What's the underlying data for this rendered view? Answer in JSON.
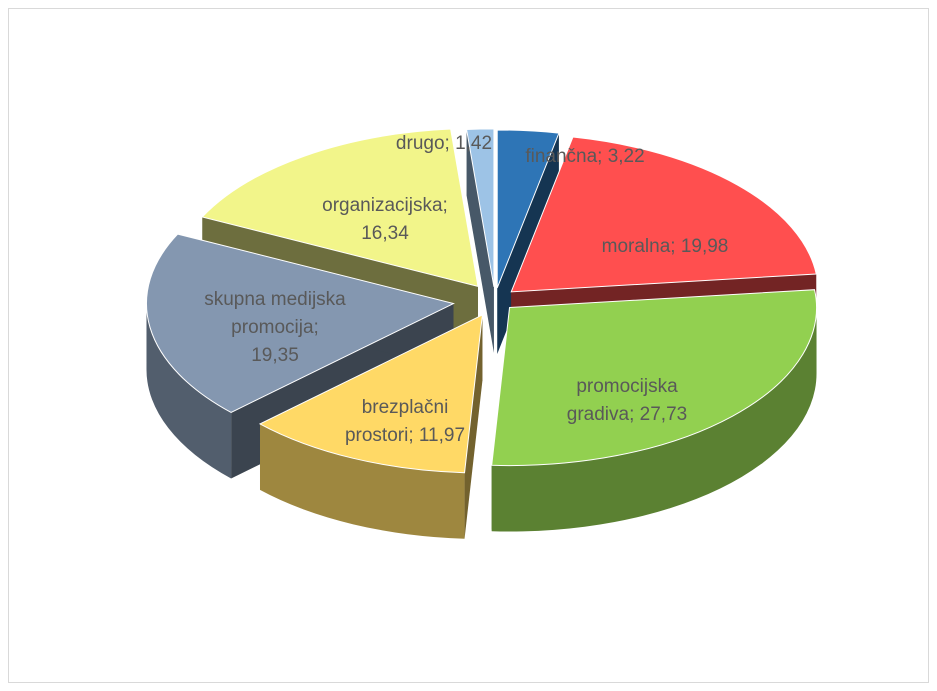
{
  "chart_data": {
    "type": "pie",
    "style": "3d-exploded",
    "title": "",
    "slices": [
      {
        "label": "finančna",
        "value": 3.22,
        "display": "finančna; 3,22",
        "color": "#2e75b6"
      },
      {
        "label": "moralna",
        "value": 19.98,
        "display": "moralna; 19,98",
        "color": "#ff4f4f"
      },
      {
        "label": "promocijska gradiva",
        "value": 27.73,
        "display": "promocijska gradiva; 27,73",
        "color": "#92d050"
      },
      {
        "label": "brezplačni prostori",
        "value": 11.97,
        "display": "brezplačni prostori; 11,97",
        "color": "#ffd966"
      },
      {
        "label": "skupna medijska promocija",
        "value": 19.35,
        "display": "skupna medijska promocija; 19,35",
        "color": "#8497b0"
      },
      {
        "label": "organizacijska",
        "value": 16.34,
        "display": "organizacijska; 16,34",
        "color": "#f2f58a"
      },
      {
        "label": "drugo",
        "value": 1.42,
        "display": "drugo; 1,42",
        "color": "#9dc3e6"
      }
    ]
  }
}
